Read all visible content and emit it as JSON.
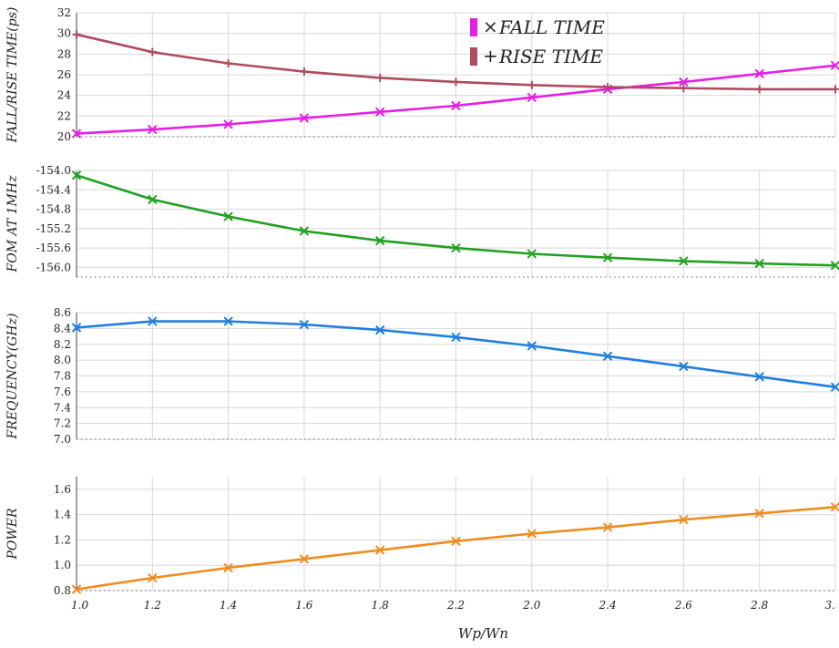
{
  "chart_data": [
    {
      "type": "line",
      "ylabel": "FALL/RISE TIME(ps)",
      "ylim": [
        20,
        32
      ],
      "yticks": [
        "20",
        "22",
        "24",
        "26",
        "28",
        "30",
        "32"
      ],
      "grid": true,
      "legend": "top-right",
      "series": [
        {
          "name": "FALL TIME",
          "marker": "×",
          "color": "#e61ee6",
          "values": [
            20.3,
            20.7,
            21.2,
            21.8,
            22.4,
            23.0,
            23.8,
            24.6,
            25.3,
            26.1,
            26.9
          ]
        },
        {
          "name": "RISE TIME",
          "marker": "+",
          "color": "#b04a5e",
          "values": [
            29.9,
            28.2,
            27.1,
            26.3,
            25.7,
            25.3,
            25.0,
            24.8,
            24.7,
            24.6,
            24.6
          ]
        }
      ]
    },
    {
      "type": "line",
      "ylabel": "FOM AT 1MHz",
      "ylim": [
        -156.2,
        -154.0
      ],
      "yticks": [
        "-154.0",
        "-154.4",
        "-154.8",
        "-155.2",
        "-155.6",
        "-156.0"
      ],
      "grid": true,
      "series": [
        {
          "color": "#20a020",
          "values": [
            -154.1,
            -154.6,
            -154.95,
            -155.25,
            -155.45,
            -155.6,
            -155.72,
            -155.8,
            -155.87,
            -155.92,
            -155.96
          ]
        }
      ]
    },
    {
      "type": "line",
      "ylabel": "FREQUENCY(GHz)",
      "ylim": [
        7.0,
        8.6
      ],
      "yticks": [
        "7.0",
        "7.2",
        "7.4",
        "7.6",
        "7.8",
        "8.0",
        "8.2",
        "8.4",
        "8.6"
      ],
      "grid": true,
      "series": [
        {
          "color": "#1f7fe0",
          "values": [
            8.41,
            8.49,
            8.49,
            8.45,
            8.38,
            8.29,
            8.18,
            8.05,
            7.92,
            7.79,
            7.66
          ]
        }
      ]
    },
    {
      "type": "line",
      "ylabel": "POWER",
      "ylim": [
        0.8,
        1.7
      ],
      "yticks": [
        "0.8",
        "1.0",
        "1.2",
        "1.4",
        "1.6"
      ],
      "grid": true,
      "series": [
        {
          "color": "#f08c1e",
          "values": [
            0.81,
            0.9,
            0.98,
            1.05,
            1.12,
            1.19,
            1.25,
            1.3,
            1.36,
            1.41,
            1.46
          ]
        }
      ]
    }
  ],
  "x_axis": {
    "xlabel": "Wp/Wn",
    "tick_labels": [
      "1.0",
      "1.2",
      "1.4",
      "1.6",
      "1.8",
      "2.2",
      "2.0",
      "2.4",
      "2.6",
      "2.8",
      "3."
    ]
  }
}
